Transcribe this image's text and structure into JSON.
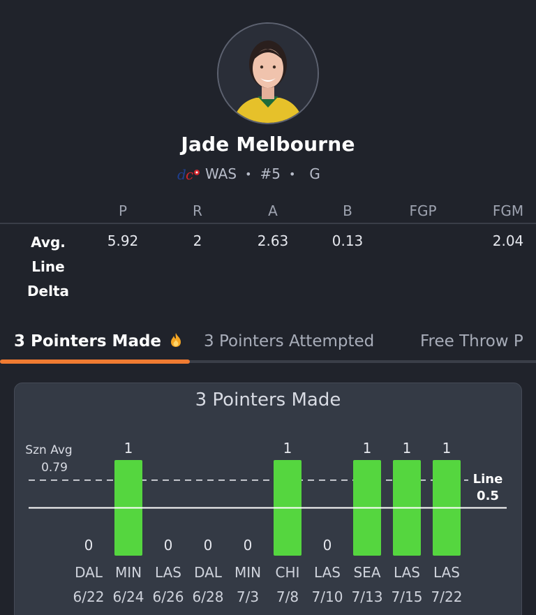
{
  "player": {
    "name": "Jade Melbourne",
    "team": "WAS",
    "number": "#5",
    "position": "G",
    "separator": "•"
  },
  "stats_table": {
    "columns": [
      "P",
      "R",
      "A",
      "B",
      "FGP",
      "FGM"
    ],
    "row_label": [
      "Avg.",
      "Line",
      "Delta"
    ],
    "values": [
      "5.92",
      "2",
      "2.63",
      "0.13",
      "",
      "2.04"
    ]
  },
  "tabs": [
    {
      "label": "3 Pointers Made",
      "active": true,
      "icon": "fire-icon"
    },
    {
      "label": "3 Pointers Attempted",
      "active": false
    },
    {
      "label": "Free Throw P",
      "active": false
    }
  ],
  "colors": {
    "accent": "#f07b32",
    "bar": "#55d63f",
    "background": "#20232b",
    "card": "#343a45"
  },
  "chart_data": {
    "type": "bar",
    "title": "3 Pointers Made",
    "categories": [
      {
        "team": "DAL",
        "date": "6/22"
      },
      {
        "team": "MIN",
        "date": "6/24"
      },
      {
        "team": "LAS",
        "date": "6/26"
      },
      {
        "team": "DAL",
        "date": "6/28"
      },
      {
        "team": "MIN",
        "date": "7/3"
      },
      {
        "team": "CHI",
        "date": "7/8"
      },
      {
        "team": "LAS",
        "date": "7/10"
      },
      {
        "team": "SEA",
        "date": "7/13"
      },
      {
        "team": "LAS",
        "date": "7/15"
      },
      {
        "team": "LAS",
        "date": "7/22"
      }
    ],
    "values": [
      0,
      1,
      0,
      0,
      0,
      1,
      0,
      1,
      1,
      1
    ],
    "season_avg": {
      "label": "Szn Avg",
      "value": 0.79
    },
    "line": {
      "label": "Line",
      "value": 0.5
    },
    "ylim": [
      0,
      1
    ]
  }
}
